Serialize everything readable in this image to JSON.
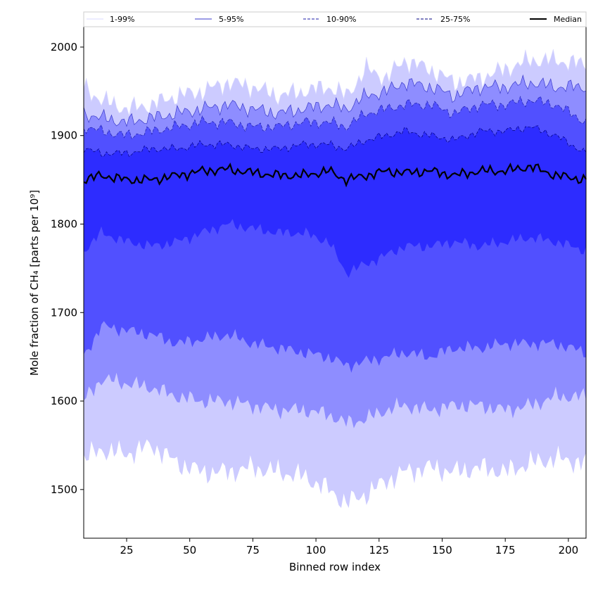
{
  "chart_data": {
    "type": "area",
    "title": "",
    "xlabel": "Binned row index",
    "ylabel": "Mole fraction of CH₄ [parts per 10⁹]",
    "xlim": [
      8,
      207
    ],
    "ylim": [
      1445,
      2023
    ],
    "xticks": [
      25,
      50,
      75,
      100,
      125,
      150,
      175,
      200
    ],
    "yticks": [
      1500,
      1600,
      1700,
      1800,
      1900,
      2000
    ],
    "grid": false,
    "legend_position": "top",
    "x_knots": [
      8,
      15,
      25,
      35,
      45,
      55,
      65,
      75,
      85,
      95,
      105,
      112,
      120,
      128,
      135,
      145,
      155,
      165,
      175,
      185,
      195,
      207
    ],
    "bands": [
      {
        "name": "1-99%",
        "color": "#cccbff",
        "line_color": "#dadaff",
        "line_style": "solid",
        "lower": [
          1535,
          1545,
          1540,
          1550,
          1530,
          1520,
          1520,
          1525,
          1520,
          1515,
          1500,
          1485,
          1495,
          1510,
          1520,
          1525,
          1520,
          1525,
          1520,
          1530,
          1535,
          1530
        ],
        "upper": [
          1955,
          1940,
          1930,
          1935,
          1945,
          1950,
          1960,
          1955,
          1945,
          1950,
          1955,
          1945,
          1975,
          1965,
          1985,
          1975,
          1960,
          1965,
          1975,
          1985,
          1985,
          1980
        ]
      },
      {
        "name": "5-95%",
        "color": "#8e8dff",
        "line_color": "#3a3acc",
        "line_style": "solid",
        "lower": [
          1600,
          1625,
          1620,
          1615,
          1605,
          1600,
          1600,
          1595,
          1590,
          1590,
          1585,
          1575,
          1580,
          1590,
          1595,
          1590,
          1595,
          1595,
          1590,
          1595,
          1605,
          1605
        ],
        "upper": [
          1925,
          1920,
          1915,
          1920,
          1925,
          1930,
          1935,
          1930,
          1925,
          1930,
          1935,
          1930,
          1945,
          1950,
          1960,
          1955,
          1945,
          1955,
          1955,
          1960,
          1955,
          1955
        ]
      },
      {
        "name": "10-90%",
        "color": "#5150ff",
        "line_color": "#1d1daa",
        "line_style": "dashed",
        "lower": [
          1650,
          1685,
          1680,
          1675,
          1665,
          1670,
          1675,
          1665,
          1660,
          1655,
          1650,
          1640,
          1645,
          1650,
          1655,
          1650,
          1660,
          1660,
          1665,
          1665,
          1665,
          1655
        ],
        "upper": [
          1910,
          1905,
          1900,
          1905,
          1910,
          1915,
          1915,
          1910,
          1910,
          1915,
          1915,
          1910,
          1925,
          1930,
          1935,
          1935,
          1925,
          1935,
          1935,
          1940,
          1935,
          1915
        ]
      },
      {
        "name": "25-75%",
        "color": "#2d2cff",
        "line_color": "#000080",
        "line_style": "dashed",
        "lower": [
          1770,
          1790,
          1780,
          1775,
          1780,
          1790,
          1800,
          1795,
          1790,
          1790,
          1780,
          1745,
          1755,
          1765,
          1775,
          1775,
          1780,
          1775,
          1780,
          1785,
          1780,
          1770
        ],
        "upper": [
          1885,
          1880,
          1880,
          1885,
          1885,
          1890,
          1890,
          1885,
          1885,
          1890,
          1890,
          1885,
          1895,
          1900,
          1905,
          1900,
          1895,
          1905,
          1905,
          1910,
          1900,
          1880
        ]
      }
    ],
    "median": {
      "name": "Median",
      "color": "#000000",
      "values": [
        1850,
        1855,
        1850,
        1850,
        1855,
        1860,
        1862,
        1858,
        1855,
        1855,
        1860,
        1850,
        1855,
        1860,
        1858,
        1860,
        1855,
        1860,
        1860,
        1865,
        1855,
        1850
      ]
    },
    "legend": [
      "1-99%",
      "5-95%",
      "10-90%",
      "25-75%",
      "Median"
    ]
  }
}
